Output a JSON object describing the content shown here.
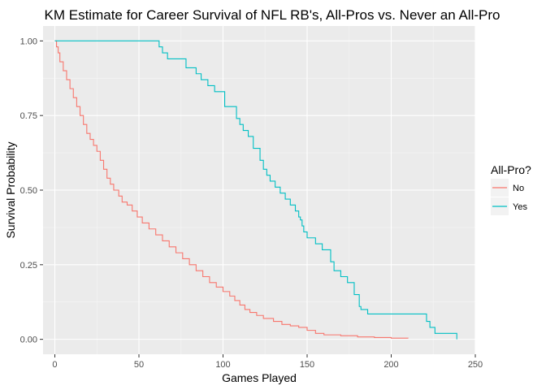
{
  "chart_data": {
    "type": "line",
    "step": true,
    "title": "KM Estimate for Career Survival of NFL RB's, All-Pros vs. Never an All-Pro",
    "xlabel": "Games Played",
    "ylabel": "Survival Probability",
    "xlim": [
      -7,
      250
    ],
    "ylim": [
      -0.05,
      1.05
    ],
    "x_ticks": [
      0,
      50,
      100,
      150,
      200,
      250
    ],
    "x_tick_labels": [
      "0",
      "50",
      "100",
      "150",
      "200",
      "250"
    ],
    "y_ticks": [
      0,
      0.25,
      0.5,
      0.75,
      1
    ],
    "y_tick_labels": [
      "0.00",
      "0.25",
      "0.50",
      "0.75",
      "1.00"
    ],
    "grid": true,
    "legend": {
      "title": "All-Pro?",
      "position": "right"
    },
    "series": [
      {
        "name": "No",
        "color": "#F8766D",
        "x": [
          0,
          1,
          2,
          3,
          5,
          7,
          9,
          11,
          13,
          15,
          17,
          19,
          21,
          23,
          25,
          27,
          29,
          31,
          33,
          35,
          38,
          40,
          43,
          46,
          49,
          52,
          56,
          60,
          64,
          68,
          72,
          76,
          80,
          84,
          88,
          92,
          96,
          100,
          104,
          107,
          110,
          113,
          116,
          120,
          124,
          130,
          135,
          140,
          145,
          150,
          155,
          160,
          170,
          180,
          190,
          200,
          210
        ],
        "y": [
          1.0,
          0.98,
          0.96,
          0.93,
          0.9,
          0.87,
          0.84,
          0.81,
          0.78,
          0.75,
          0.72,
          0.69,
          0.67,
          0.65,
          0.63,
          0.6,
          0.57,
          0.54,
          0.52,
          0.5,
          0.48,
          0.46,
          0.45,
          0.43,
          0.41,
          0.39,
          0.37,
          0.35,
          0.33,
          0.31,
          0.29,
          0.27,
          0.25,
          0.23,
          0.21,
          0.19,
          0.175,
          0.16,
          0.145,
          0.13,
          0.115,
          0.1,
          0.09,
          0.08,
          0.07,
          0.06,
          0.05,
          0.045,
          0.04,
          0.03,
          0.02,
          0.015,
          0.012,
          0.008,
          0.006,
          0.004,
          0.003
        ]
      },
      {
        "name": "Yes",
        "color": "#00BFC4",
        "x": [
          0,
          62,
          64,
          67,
          78,
          84,
          87,
          91,
          95,
          101,
          108,
          110,
          112,
          115,
          118,
          122,
          124,
          126,
          128,
          131,
          134,
          137,
          140,
          143,
          145,
          146,
          147,
          148,
          150,
          155,
          159,
          164,
          166,
          170,
          174,
          178,
          181,
          182,
          186,
          221,
          223,
          226,
          237,
          239
        ],
        "y": [
          1.0,
          0.98,
          0.96,
          0.94,
          0.91,
          0.89,
          0.87,
          0.85,
          0.83,
          0.78,
          0.74,
          0.72,
          0.7,
          0.68,
          0.64,
          0.6,
          0.57,
          0.55,
          0.53,
          0.51,
          0.49,
          0.47,
          0.45,
          0.43,
          0.41,
          0.4,
          0.38,
          0.36,
          0.34,
          0.32,
          0.3,
          0.26,
          0.23,
          0.21,
          0.19,
          0.15,
          0.11,
          0.1,
          0.085,
          0.06,
          0.04,
          0.02,
          0.02,
          0.0
        ]
      }
    ]
  }
}
